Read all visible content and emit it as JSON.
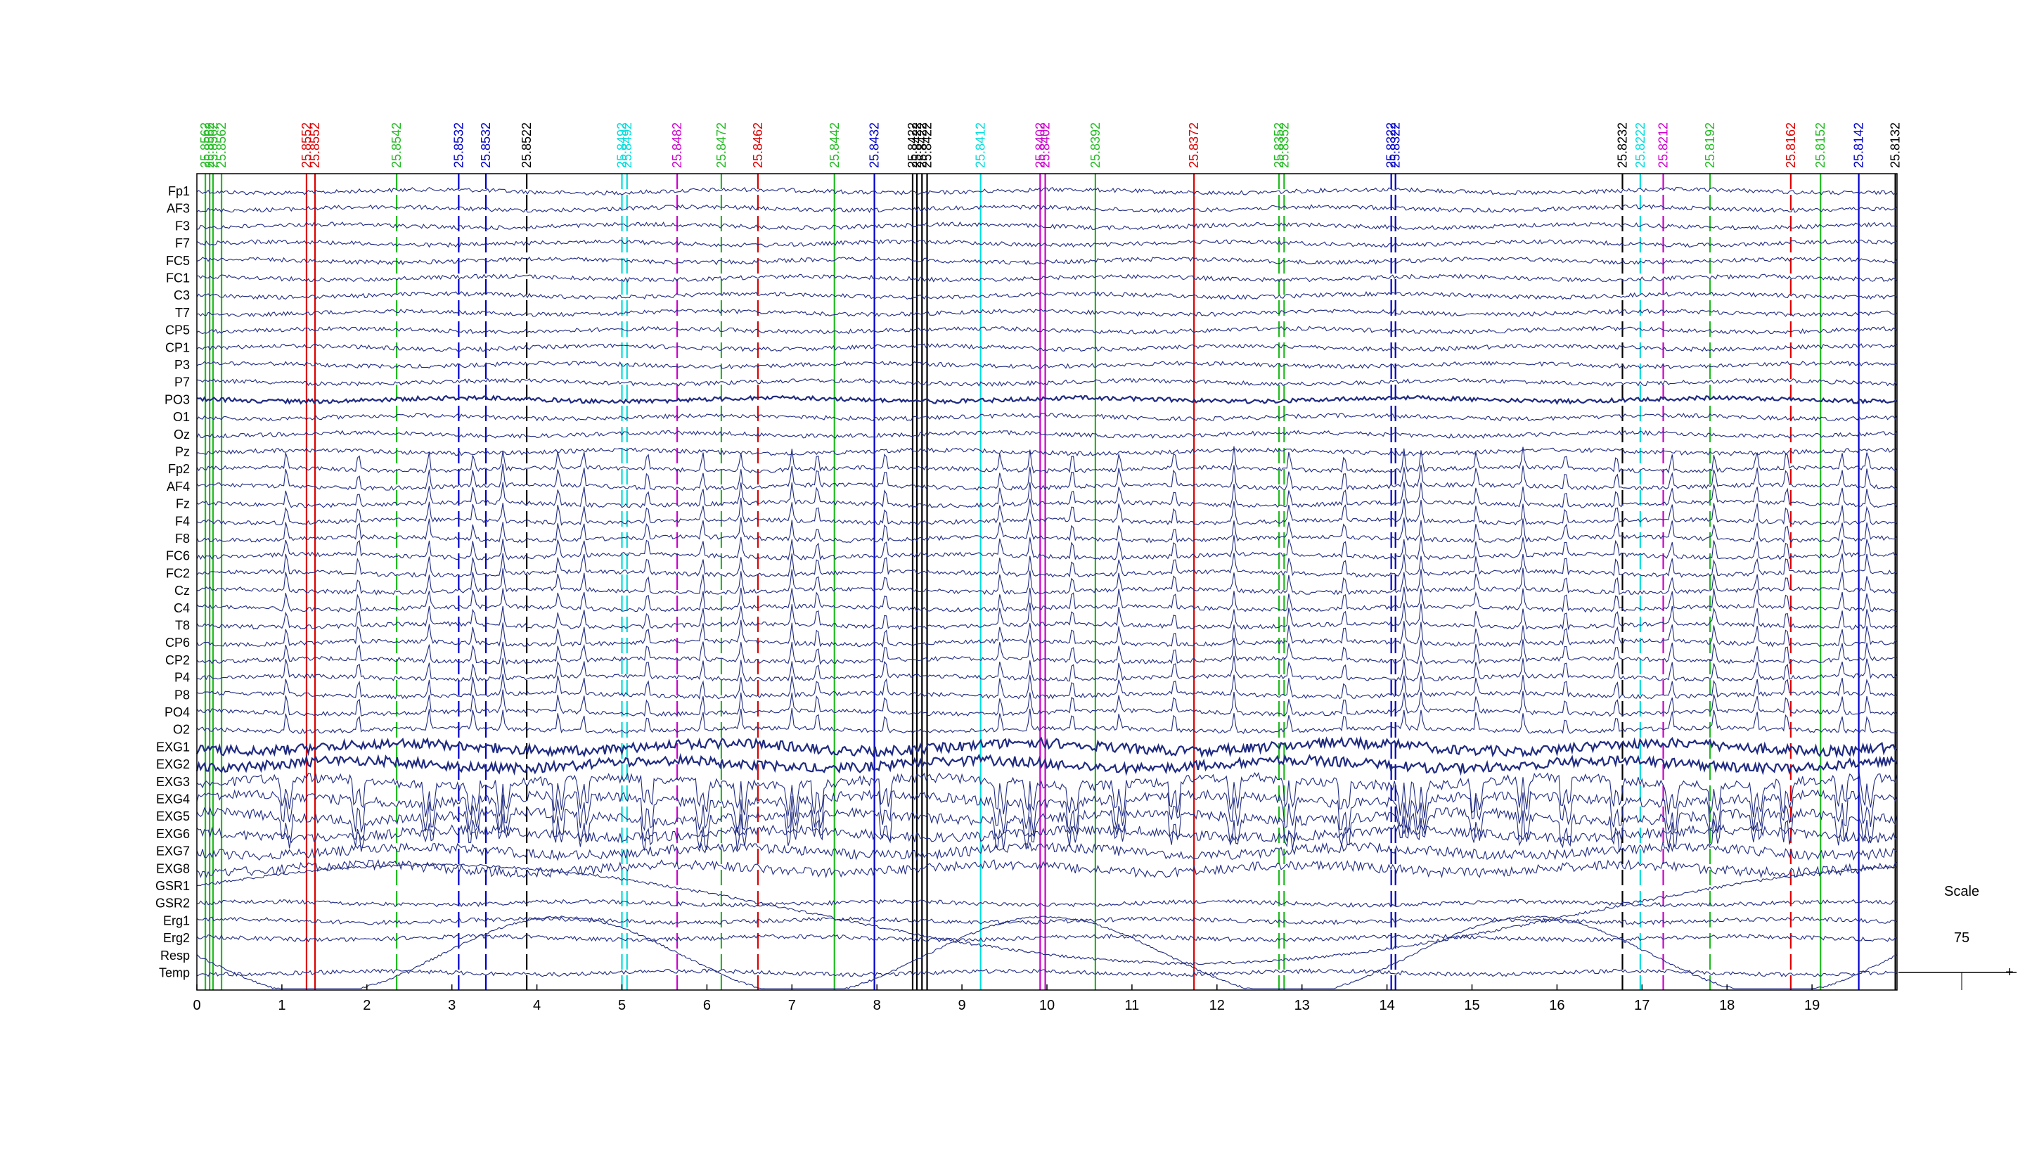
{
  "chart_data": {
    "type": "line",
    "title": "",
    "xlabel": "",
    "ylabel": "",
    "xlim": [
      0,
      20
    ],
    "x_ticks": [
      0,
      1,
      2,
      3,
      4,
      5,
      6,
      7,
      8,
      9,
      10,
      11,
      12,
      13,
      14,
      15,
      16,
      17,
      18,
      19
    ],
    "channels": [
      "Fp1",
      "AF3",
      "F3",
      "F7",
      "FC5",
      "FC1",
      "C3",
      "T7",
      "CP5",
      "CP1",
      "P3",
      "P7",
      "PO3",
      "O1",
      "Oz",
      "Pz",
      "Fp2",
      "AF4",
      "Fz",
      "F4",
      "F8",
      "FC6",
      "FC2",
      "Cz",
      "C4",
      "T8",
      "CP6",
      "CP2",
      "P4",
      "P8",
      "PO4",
      "O2",
      "EXG1",
      "EXG2",
      "EXG3",
      "EXG4",
      "EXG5",
      "EXG6",
      "EXG7",
      "EXG8",
      "GSR1",
      "GSR2",
      "Erg1",
      "Erg2",
      "Resp",
      "Temp"
    ],
    "trace_color": "#1f2a80",
    "grid": false,
    "events": [
      {
        "x": 0.1,
        "label": "25.8562",
        "color": "#22bb22",
        "style": "solid"
      },
      {
        "x": 0.15,
        "label": "25.8562",
        "color": "#22bb22",
        "style": "solid"
      },
      {
        "x": 0.19,
        "label": "25.8562",
        "color": "#22bb22",
        "style": "solid"
      },
      {
        "x": 0.29,
        "label": "25.8562",
        "color": "#22bb22",
        "style": "solid"
      },
      {
        "x": 1.29,
        "label": "25.8552",
        "color": "#dd0000",
        "style": "solid"
      },
      {
        "x": 1.39,
        "label": "25.8552",
        "color": "#dd0000",
        "style": "solid"
      },
      {
        "x": 2.35,
        "label": "25.8542",
        "color": "#22bb22",
        "style": "dashed"
      },
      {
        "x": 3.08,
        "label": "25.8532",
        "color": "#0000cc",
        "style": "dashed"
      },
      {
        "x": 3.4,
        "label": "25.8532",
        "color": "#0000cc",
        "style": "dashed"
      },
      {
        "x": 3.88,
        "label": "25.8522",
        "color": "#000000",
        "style": "dashed"
      },
      {
        "x": 5.0,
        "label": "25.8492",
        "color": "#00dddd",
        "style": "dashed"
      },
      {
        "x": 5.06,
        "label": "25.8492",
        "color": "#00dddd",
        "style": "dashed"
      },
      {
        "x": 5.65,
        "label": "25.8482",
        "color": "#cc00cc",
        "style": "dashed"
      },
      {
        "x": 6.17,
        "label": "25.8472",
        "color": "#22bb22",
        "style": "dashed"
      },
      {
        "x": 6.6,
        "label": "25.8462",
        "color": "#dd0000",
        "style": "dashed"
      },
      {
        "x": 7.5,
        "label": "25.8442",
        "color": "#22bb22",
        "style": "solid"
      },
      {
        "x": 7.97,
        "label": "25.8432",
        "color": "#0000cc",
        "style": "solid"
      },
      {
        "x": 8.42,
        "label": "25.8422",
        "color": "#000000",
        "style": "solid"
      },
      {
        "x": 8.47,
        "label": "25.8422",
        "color": "#000000",
        "style": "solid"
      },
      {
        "x": 8.53,
        "label": "25.8422",
        "color": "#000000",
        "style": "solid"
      },
      {
        "x": 8.59,
        "label": "25.8422",
        "color": "#000000",
        "style": "solid"
      },
      {
        "x": 9.22,
        "label": "25.8412",
        "color": "#00dddd",
        "style": "solid"
      },
      {
        "x": 9.92,
        "label": "25.8402",
        "color": "#cc00cc",
        "style": "solid"
      },
      {
        "x": 9.98,
        "label": "25.8402",
        "color": "#cc00cc",
        "style": "solid"
      },
      {
        "x": 10.57,
        "label": "25.8392",
        "color": "#22bb22",
        "style": "solid"
      },
      {
        "x": 11.73,
        "label": "25.8372",
        "color": "#dd0000",
        "style": "solid"
      },
      {
        "x": 12.73,
        "label": "25.8352",
        "color": "#22bb22",
        "style": "dashed"
      },
      {
        "x": 12.79,
        "label": "25.8352",
        "color": "#22bb22",
        "style": "dashed"
      },
      {
        "x": 14.05,
        "label": "25.8322",
        "color": "#0000cc",
        "style": "dashed"
      },
      {
        "x": 14.1,
        "label": "25.8322",
        "color": "#0000cc",
        "style": "dashed"
      },
      {
        "x": 16.77,
        "label": "25.8232",
        "color": "#000000",
        "style": "dashed"
      },
      {
        "x": 16.98,
        "label": "25.8222",
        "color": "#00dddd",
        "style": "dashed"
      },
      {
        "x": 17.25,
        "label": "25.8212",
        "color": "#cc00cc",
        "style": "dashed"
      },
      {
        "x": 17.8,
        "label": "25.8192",
        "color": "#22bb22",
        "style": "dashed"
      },
      {
        "x": 18.75,
        "label": "25.8162",
        "color": "#dd0000",
        "style": "dashed"
      },
      {
        "x": 19.1,
        "label": "25.8152",
        "color": "#22bb22",
        "style": "solid"
      },
      {
        "x": 19.55,
        "label": "25.8142",
        "color": "#0000cc",
        "style": "solid"
      },
      {
        "x": 19.98,
        "label": "25.8132",
        "color": "#000000",
        "style": "solid"
      }
    ],
    "scale": {
      "label": "Scale",
      "value": "75"
    }
  }
}
